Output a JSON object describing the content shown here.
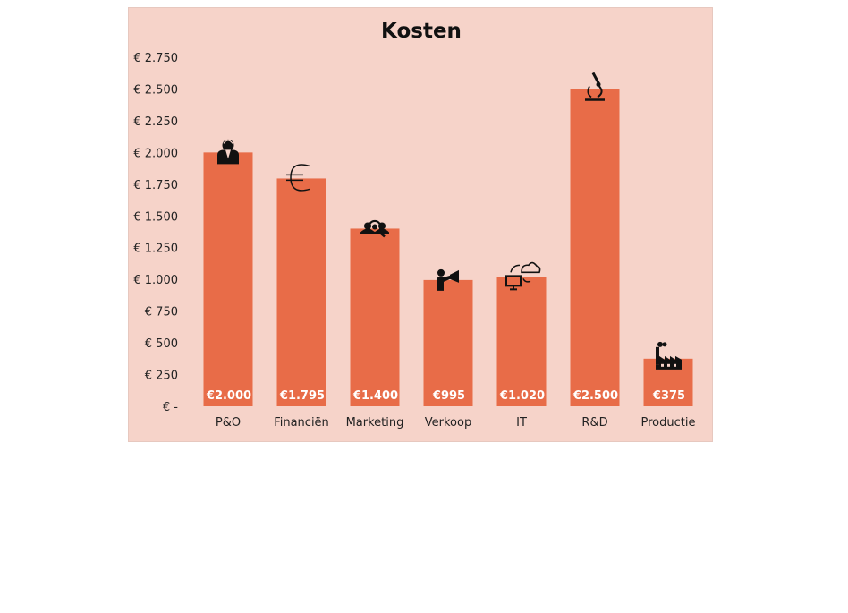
{
  "colors": {
    "panel": "#f6d3c9",
    "bar": "#e86c48",
    "data_label": "#ffffff",
    "text": "#111111"
  },
  "chart_data": {
    "type": "bar",
    "title": "Kosten",
    "xlabel": "",
    "ylabel": "",
    "ylim": [
      0,
      2750
    ],
    "yticks": [
      0,
      250,
      500,
      750,
      1000,
      1250,
      1500,
      1750,
      2000,
      2250,
      2500,
      2750
    ],
    "ytick_labels": [
      "€ -",
      "€ 250",
      "€ 500",
      "€ 750",
      "€ 1.000",
      "€ 1.250",
      "€ 1.500",
      "€ 1.750",
      "€ 2.000",
      "€ 2.250",
      "€ 2.500",
      "€ 2.750"
    ],
    "categories": [
      "P&O",
      "Financiën",
      "Marketing",
      "Verkoop",
      "IT",
      "R&D",
      "Productie"
    ],
    "values": [
      2000,
      1795,
      1400,
      995,
      1020,
      2500,
      375
    ],
    "data_labels": [
      "€2.000",
      "€1.795",
      "€1.400",
      "€995",
      "€1.020",
      "€2.500",
      "€375"
    ],
    "icons": [
      "person-icon",
      "euro-icon",
      "team-search-icon",
      "megaphone-presenter-icon",
      "cloud-computer-icon",
      "microscope-icon",
      "factory-icon"
    ],
    "grid": false,
    "legend": "none"
  }
}
